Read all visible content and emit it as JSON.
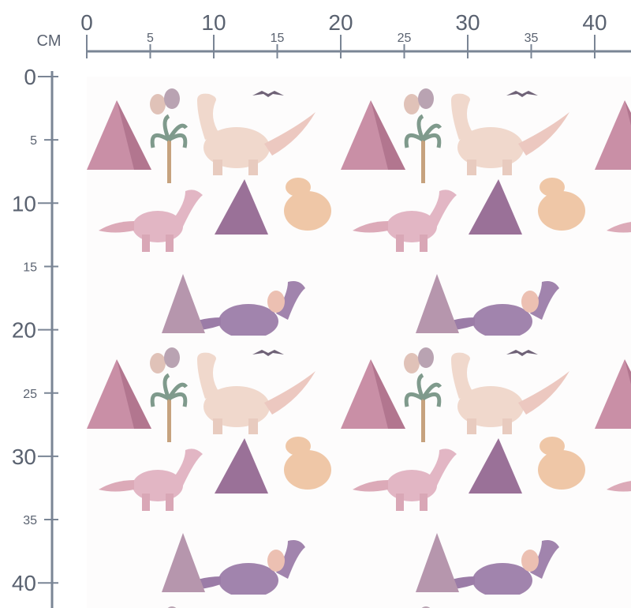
{
  "ruler": {
    "unit": "CM",
    "top_ticks": [
      0,
      5,
      10,
      15,
      20,
      25,
      30,
      35,
      40
    ],
    "left_ticks": [
      0,
      5,
      10,
      15,
      20,
      25,
      30,
      35,
      40
    ]
  }
}
